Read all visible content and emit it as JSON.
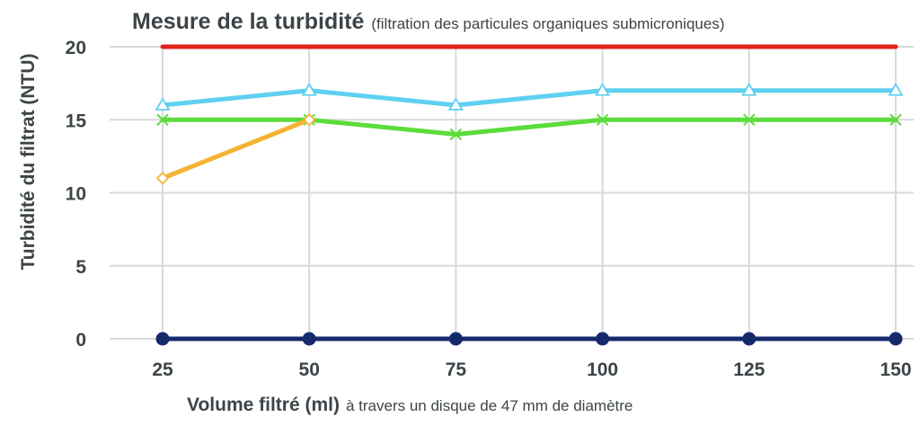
{
  "chart_data": {
    "type": "line",
    "title": "Mesure de la turbidité",
    "subtitle": "(filtration des particules organiques submicroniques)",
    "xlabel": "Volume filtré (ml)",
    "xlabel_note": "à travers un disque de 47 mm de diamètre",
    "ylabel": "Turbidité du filtrat (NTU)",
    "categories": [
      "25",
      "50",
      "75",
      "100",
      "125",
      "150"
    ],
    "x": [
      25,
      50,
      75,
      100,
      125,
      150
    ],
    "yticks": [
      "0",
      "5",
      "10",
      "15",
      "20"
    ],
    "ylim": [
      0,
      20
    ],
    "grid": true,
    "legend": "none",
    "series": [
      {
        "color": "#e2231a",
        "marker": "none",
        "x": [
          25,
          50,
          75,
          100,
          125,
          150
        ],
        "values": [
          20,
          20,
          20,
          20,
          20,
          20
        ]
      },
      {
        "color": "#5fd0ef",
        "marker": "triangle",
        "x": [
          25,
          50,
          75,
          100,
          125,
          150
        ],
        "values": [
          16,
          17,
          16,
          17,
          17,
          17
        ]
      },
      {
        "color": "#5cdc3c",
        "marker": "x",
        "x": [
          25,
          50,
          75,
          100,
          125,
          150
        ],
        "values": [
          15,
          15,
          14,
          15,
          15,
          15
        ]
      },
      {
        "color": "#f5b335",
        "marker": "diamond",
        "x": [
          25,
          50
        ],
        "values": [
          11,
          15
        ]
      },
      {
        "color": "#152a6b",
        "marker": "circle",
        "x": [
          25,
          50,
          75,
          100,
          125,
          150
        ],
        "values": [
          0,
          0,
          0,
          0,
          0,
          0
        ]
      }
    ]
  }
}
